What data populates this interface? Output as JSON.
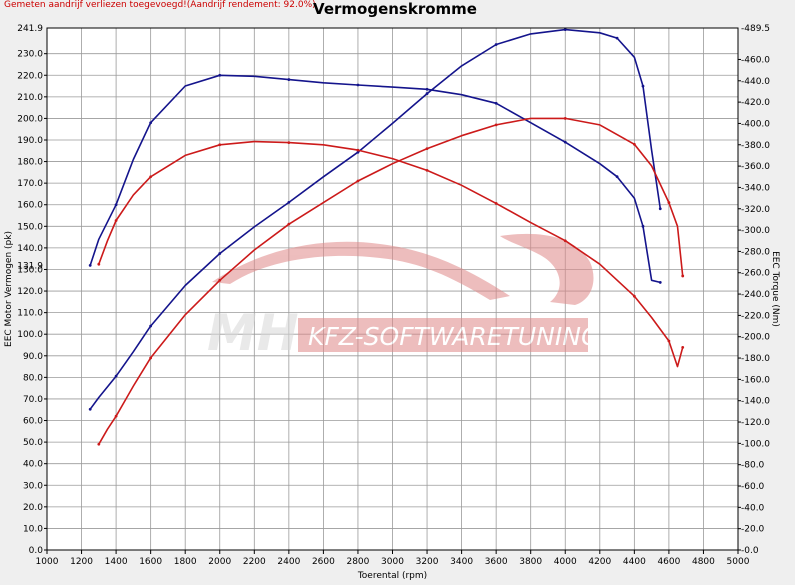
{
  "window": {
    "title": "Vermogenskromme",
    "note": "Gemeten aandrijf verliezen toegevoegd!(Aandrijf rendement: 92.0%)"
  },
  "watermark": {
    "logo_text": "MH",
    "brand_text": "KFZ-SOFTWARETUNING"
  },
  "colors": {
    "blue": "#14148c",
    "red": "#cc1a1a",
    "note": "#cc0000",
    "background": "#efefef",
    "plot_background": "#ffffff",
    "watermark": "#e08888"
  },
  "chart_data": {
    "type": "line",
    "title": "Vermogenskromme",
    "xlabel": "Toerental (rpm)",
    "ylabel": "EEC Motor Vermogen (pk)",
    "y2label": "EEC Torque (Nm)",
    "xlim": [
      1000,
      5000
    ],
    "ylim": [
      0,
      241.9
    ],
    "y2lim": [
      0,
      489.5
    ],
    "grid": true,
    "x_ticks": [
      1000,
      1200,
      1400,
      1600,
      1800,
      2000,
      2200,
      2400,
      2600,
      2800,
      3000,
      3200,
      3400,
      3600,
      3800,
      4000,
      4200,
      4400,
      4600,
      4800,
      5000
    ],
    "y_ticks": [
      0,
      10,
      20,
      30,
      40,
      50,
      60,
      70,
      80,
      90,
      100,
      110,
      120,
      130,
      140,
      150,
      160,
      170,
      180,
      190,
      200,
      210,
      220,
      230
    ],
    "y_tick_labels": [
      "0.0",
      "10.0",
      "20.0",
      "30.0",
      "40.0",
      "50.0",
      "60.0",
      "70.0",
      "80.0",
      "90.0",
      "100.0",
      "110.0",
      "120.0",
      "130.0",
      "140.0",
      "150.0",
      "160.0",
      "170.0",
      "180.0",
      "190.0",
      "200.0",
      "210.0",
      "220.0",
      "230.0"
    ],
    "y_max_label": "241.9",
    "y_min_label": "0.0",
    "y_first_label": "131.9",
    "y2_ticks": [
      -20,
      0,
      20,
      40,
      60,
      80,
      100,
      120,
      140,
      160,
      180,
      200,
      220,
      240,
      260,
      280,
      300,
      320,
      340,
      360,
      380,
      400,
      420,
      440,
      460
    ],
    "y2_tick_labels": [
      "-20.0",
      "0.0",
      "20.0",
      "40.0",
      "60.0",
      "80.0",
      "100.0",
      "120.0",
      "140.0",
      "160.0",
      "180.0",
      "200.0",
      "220.0",
      "240.0",
      "260.0",
      "280.0",
      "300.0",
      "320.0",
      "340.0",
      "360.0",
      "380.0",
      "400.0",
      "420.0",
      "440.0",
      "460.0"
    ],
    "y2_max_label": "489.5",
    "series": [
      {
        "axis": "right",
        "color": "#14148c",
        "x": [
          1250,
          1300,
          1400,
          1500,
          1600,
          1800,
          2000,
          2200,
          2400,
          2600,
          2800,
          3000,
          3200,
          3400,
          3600,
          3800,
          4000,
          4200,
          4300,
          4400,
          4450,
          4500,
          4550
        ],
        "y": [
          132,
          143,
          163,
          186,
          210,
          248,
          278,
          303,
          326,
          350,
          373,
          400,
          428,
          454,
          474,
          484,
          488,
          485,
          480,
          462,
          435,
          375,
          320
        ]
      },
      {
        "axis": "left",
        "color": "#14148c",
        "x": [
          1250,
          1300,
          1400,
          1500,
          1600,
          1800,
          2000,
          2200,
          2400,
          2600,
          2800,
          3000,
          3200,
          3400,
          3600,
          3800,
          4000,
          4200,
          4300,
          4400,
          4450,
          4500,
          4550
        ],
        "y": [
          131.9,
          144,
          160,
          181,
          198,
          215,
          220,
          219.5,
          218,
          216.5,
          215.5,
          214.5,
          213.5,
          211,
          207,
          198,
          189,
          179,
          173,
          163,
          150,
          125,
          124
        ]
      },
      {
        "axis": "right",
        "color": "#cc1a1a",
        "x": [
          1300,
          1350,
          1400,
          1500,
          1600,
          1800,
          2000,
          2200,
          2400,
          2600,
          2800,
          3000,
          3200,
          3400,
          3600,
          3800,
          4000,
          4200,
          4400,
          4500,
          4600,
          4650,
          4680
        ],
        "y": [
          268,
          290,
          309,
          333,
          350,
          370,
          380,
          383,
          382,
          380,
          375,
          367,
          356,
          342,
          325,
          307,
          290,
          268,
          238,
          218,
          196,
          172,
          190
        ]
      },
      {
        "axis": "left",
        "color": "#cc1a1a",
        "x": [
          1300,
          1350,
          1400,
          1500,
          1600,
          1800,
          2000,
          2200,
          2400,
          2600,
          2800,
          3000,
          3200,
          3400,
          3600,
          3800,
          4000,
          4200,
          4400,
          4500,
          4600,
          4650,
          4680
        ],
        "y": [
          49,
          56,
          62,
          76,
          89,
          109,
          125,
          139,
          151,
          161,
          171,
          179,
          186,
          192,
          197,
          200,
          200,
          197,
          188,
          178,
          161,
          150,
          127
        ]
      }
    ]
  }
}
